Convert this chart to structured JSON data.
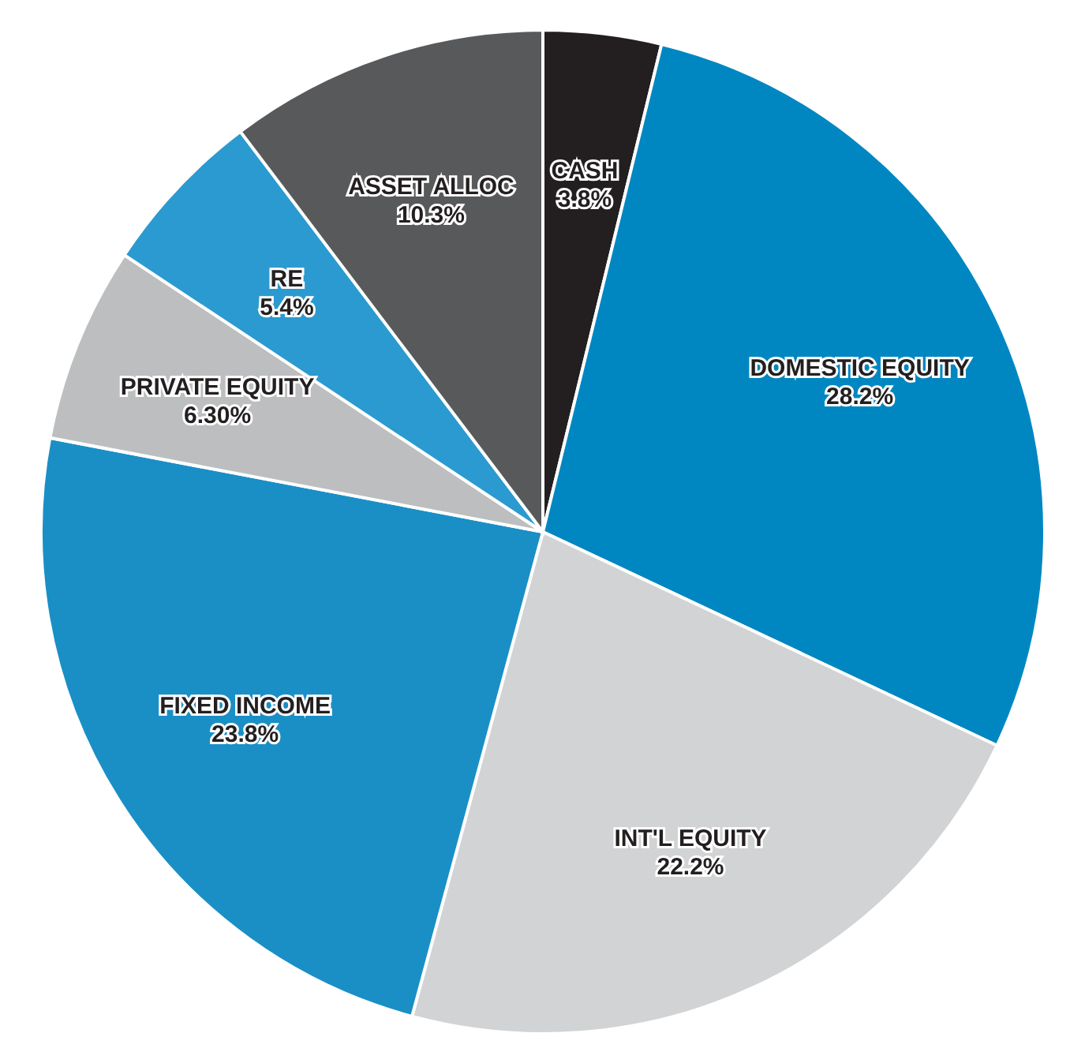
{
  "chart_data": {
    "type": "pie",
    "categories": [
      "CASH",
      "DOMESTIC EQUITY",
      "INT'L EQUITY",
      "FIXED INCOME",
      "PRIVATE EQUITY",
      "RE",
      "ASSET ALLOC"
    ],
    "values": [
      3.8,
      28.2,
      22.2,
      23.8,
      6.3,
      5.4,
      10.3
    ],
    "value_labels": [
      "3.8%",
      "28.2%",
      "22.2%",
      "23.8%",
      "6.30%",
      "5.4%",
      "10.3%"
    ],
    "colors": [
      "#231f20",
      "#0087c1",
      "#d1d3d4",
      "#1a8fc6",
      "#bcbec0",
      "#2b9ad0",
      "#58595b"
    ],
    "legend": false
  }
}
